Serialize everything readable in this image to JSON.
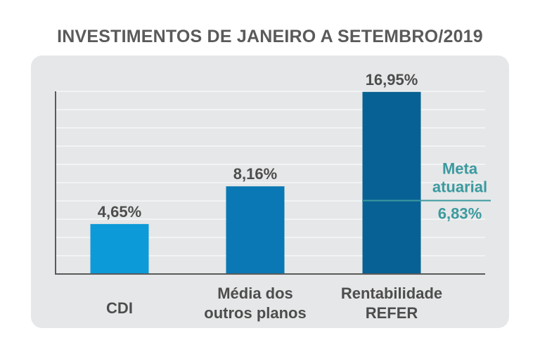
{
  "chart_data": {
    "type": "bar",
    "title": "INVESTIMENTOS DE JANEIRO A SETEMBRO/2019",
    "xlabel": "",
    "ylabel": "",
    "categories": [
      [
        "CDI"
      ],
      [
        "Média dos",
        "outros planos"
      ],
      [
        "Rentabilidade",
        "REFER"
      ]
    ],
    "values": [
      4.65,
      8.16,
      16.95
    ],
    "value_labels": [
      "4,65%",
      "8,16%",
      "16,95%"
    ],
    "ylim": [
      0,
      17
    ],
    "grid": true,
    "colors": [
      "#0d9ad8",
      "#0a78b4",
      "#086194"
    ],
    "reference_line": {
      "value": 6.83,
      "label_lines": [
        "Meta",
        "atuarial"
      ],
      "value_label": "6,83%",
      "color": "#3b9a9f"
    }
  }
}
